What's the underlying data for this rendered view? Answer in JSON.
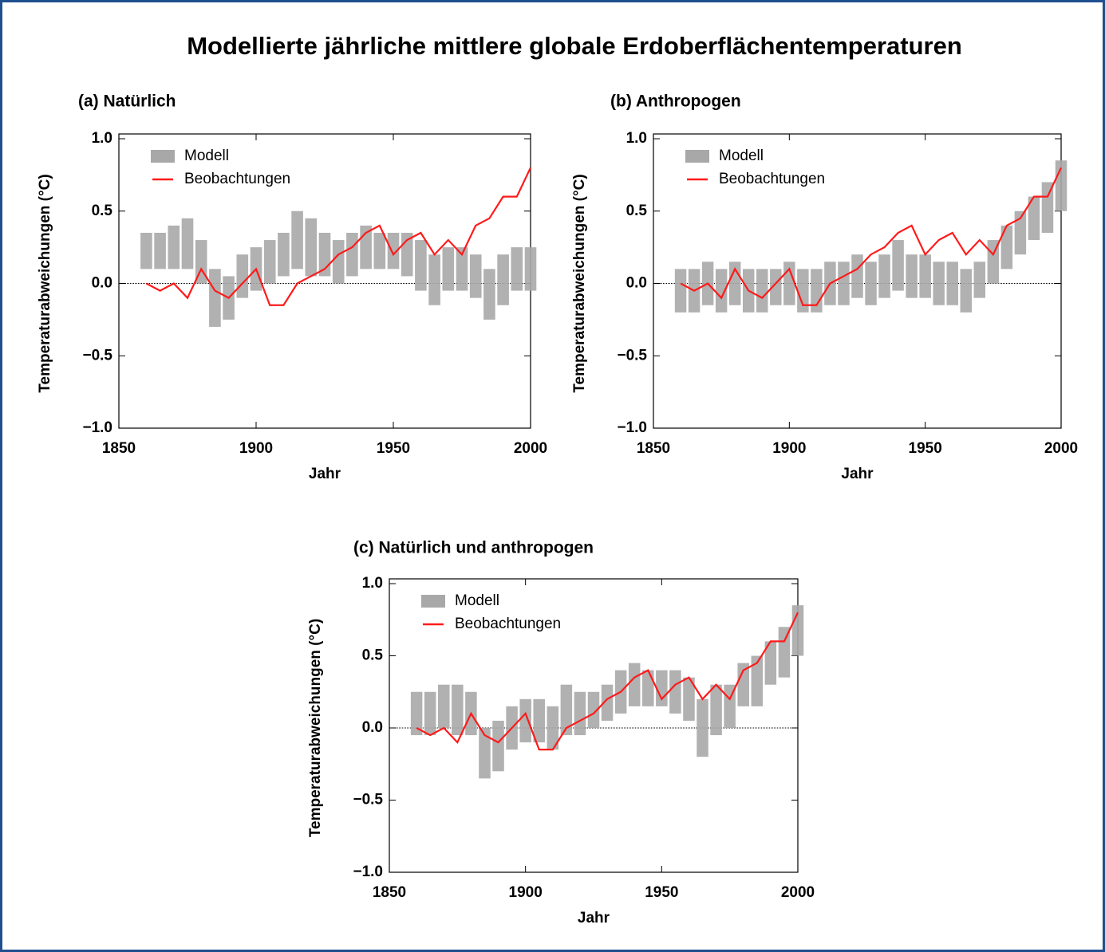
{
  "title": "Modellierte jährliche mittlere globale Erdoberflächentemperaturen",
  "chart_data": [
    {
      "type": "line",
      "title": "(a) Natürlich",
      "x_label": "Jahr",
      "y_label": "Temperaturabweichungen (°C)",
      "x": [
        1860,
        1865,
        1870,
        1875,
        1880,
        1885,
        1890,
        1895,
        1900,
        1905,
        1910,
        1915,
        1920,
        1925,
        1930,
        1935,
        1940,
        1945,
        1950,
        1955,
        1960,
        1965,
        1970,
        1975,
        1980,
        1985,
        1990,
        1995,
        2000
      ],
      "xlim": [
        1850,
        2000
      ],
      "xticks": [
        1850,
        1900,
        1950,
        2000
      ],
      "ylim": [
        -1,
        1
      ],
      "yticks": [
        {
          "value": -1,
          "label": "−1.0"
        },
        {
          "value": -0.5,
          "label": "−0.5"
        },
        {
          "value": 0,
          "label": "0.0"
        },
        0.5,
        {
          "value": 1,
          "label": "1.0"
        }
      ],
      "zero_line": true,
      "legend": "upper left",
      "series": [
        {
          "name": "Modell",
          "color": "#a8a8a8",
          "lower": [
            0.1,
            0.1,
            0.1,
            0.1,
            0.0,
            -0.3,
            -0.25,
            -0.1,
            -0.05,
            0.0,
            0.05,
            0.1,
            0.05,
            0.05,
            0.0,
            0.05,
            0.1,
            0.1,
            0.1,
            0.05,
            -0.05,
            -0.15,
            -0.05,
            -0.05,
            -0.1,
            -0.25,
            -0.15,
            -0.05,
            -0.05
          ],
          "upper": [
            0.35,
            0.35,
            0.4,
            0.45,
            0.3,
            0.1,
            0.05,
            0.2,
            0.25,
            0.3,
            0.35,
            0.5,
            0.45,
            0.35,
            0.3,
            0.35,
            0.4,
            0.35,
            0.35,
            0.35,
            0.3,
            0.2,
            0.25,
            0.25,
            0.2,
            0.1,
            0.2,
            0.25,
            0.25
          ]
        },
        {
          "name": "Beobachtungen",
          "color": "#ff1a1a",
          "values": [
            0.0,
            -0.05,
            0.0,
            -0.1,
            0.1,
            -0.05,
            -0.1,
            0.0,
            0.1,
            -0.15,
            -0.15,
            0.0,
            0.05,
            0.1,
            0.2,
            0.25,
            0.35,
            0.4,
            0.2,
            0.3,
            0.35,
            0.2,
            0.3,
            0.2,
            0.4,
            0.45,
            0.6,
            0.6,
            0.8
          ]
        }
      ]
    },
    {
      "type": "line",
      "title": "(b) Anthropogen",
      "x_label": "Jahr",
      "y_label": "Temperaturabweichungen (°C)",
      "x": [
        1860,
        1865,
        1870,
        1875,
        1880,
        1885,
        1890,
        1895,
        1900,
        1905,
        1910,
        1915,
        1920,
        1925,
        1930,
        1935,
        1940,
        1945,
        1950,
        1955,
        1960,
        1965,
        1970,
        1975,
        1980,
        1985,
        1990,
        1995,
        2000
      ],
      "xlim": [
        1850,
        2000
      ],
      "xticks": [
        1850,
        1900,
        1950,
        2000
      ],
      "ylim": [
        -1,
        1
      ],
      "yticks": [
        {
          "value": -1,
          "label": "−1.0"
        },
        {
          "value": -0.5,
          "label": "−0.5"
        },
        {
          "value": 0,
          "label": "0.0"
        },
        0.5,
        {
          "value": 1,
          "label": "1.0"
        }
      ],
      "zero_line": true,
      "legend": "upper left",
      "series": [
        {
          "name": "Modell",
          "color": "#a8a8a8",
          "lower": [
            -0.2,
            -0.2,
            -0.15,
            -0.2,
            -0.15,
            -0.2,
            -0.2,
            -0.15,
            -0.15,
            -0.2,
            -0.2,
            -0.15,
            -0.15,
            -0.1,
            -0.15,
            -0.1,
            -0.05,
            -0.1,
            -0.1,
            -0.15,
            -0.15,
            -0.2,
            -0.1,
            0.0,
            0.1,
            0.2,
            0.3,
            0.35,
            0.5
          ],
          "upper": [
            0.1,
            0.1,
            0.15,
            0.1,
            0.15,
            0.1,
            0.1,
            0.1,
            0.15,
            0.1,
            0.1,
            0.15,
            0.15,
            0.2,
            0.15,
            0.2,
            0.3,
            0.2,
            0.2,
            0.15,
            0.15,
            0.1,
            0.15,
            0.3,
            0.4,
            0.5,
            0.6,
            0.7,
            0.85
          ]
        },
        {
          "name": "Beobachtungen",
          "color": "#ff1a1a",
          "values": [
            0.0,
            -0.05,
            0.0,
            -0.1,
            0.1,
            -0.05,
            -0.1,
            0.0,
            0.1,
            -0.15,
            -0.15,
            0.0,
            0.05,
            0.1,
            0.2,
            0.25,
            0.35,
            0.4,
            0.2,
            0.3,
            0.35,
            0.2,
            0.3,
            0.2,
            0.4,
            0.45,
            0.6,
            0.6,
            0.8
          ]
        }
      ]
    },
    {
      "type": "line",
      "title": "(c) Natürlich und anthropogen",
      "x_label": "Jahr",
      "y_label": "Temperaturabweichungen (°C)",
      "x": [
        1860,
        1865,
        1870,
        1875,
        1880,
        1885,
        1890,
        1895,
        1900,
        1905,
        1910,
        1915,
        1920,
        1925,
        1930,
        1935,
        1940,
        1945,
        1950,
        1955,
        1960,
        1965,
        1970,
        1975,
        1980,
        1985,
        1990,
        1995,
        2000
      ],
      "xlim": [
        1850,
        2000
      ],
      "xticks": [
        1850,
        1900,
        1950,
        2000
      ],
      "ylim": [
        -1,
        1
      ],
      "yticks": [
        {
          "value": -1,
          "label": "−1.0"
        },
        {
          "value": -0.5,
          "label": "−0.5"
        },
        {
          "value": 0,
          "label": "0.0"
        },
        0.5,
        {
          "value": 1,
          "label": "1.0"
        }
      ],
      "zero_line": true,
      "legend": "upper left",
      "series": [
        {
          "name": "Modell",
          "color": "#a8a8a8",
          "lower": [
            -0.05,
            -0.05,
            0.0,
            -0.05,
            -0.05,
            -0.35,
            -0.3,
            -0.15,
            -0.1,
            -0.1,
            -0.15,
            -0.05,
            -0.05,
            0.0,
            0.05,
            0.1,
            0.15,
            0.15,
            0.15,
            0.1,
            0.05,
            -0.2,
            -0.05,
            0.0,
            0.15,
            0.15,
            0.3,
            0.35,
            0.5
          ],
          "upper": [
            0.25,
            0.25,
            0.3,
            0.3,
            0.25,
            0.0,
            0.05,
            0.15,
            0.2,
            0.2,
            0.15,
            0.3,
            0.25,
            0.25,
            0.3,
            0.4,
            0.45,
            0.4,
            0.4,
            0.4,
            0.35,
            0.2,
            0.3,
            0.3,
            0.45,
            0.5,
            0.6,
            0.7,
            0.85
          ]
        },
        {
          "name": "Beobachtungen",
          "color": "#ff1a1a",
          "values": [
            0.0,
            -0.05,
            0.0,
            -0.1,
            0.1,
            -0.05,
            -0.1,
            0.0,
            0.1,
            -0.15,
            -0.15,
            0.0,
            0.05,
            0.1,
            0.2,
            0.25,
            0.35,
            0.4,
            0.2,
            0.3,
            0.35,
            0.2,
            0.3,
            0.2,
            0.4,
            0.45,
            0.6,
            0.6,
            0.8
          ]
        }
      ]
    }
  ]
}
